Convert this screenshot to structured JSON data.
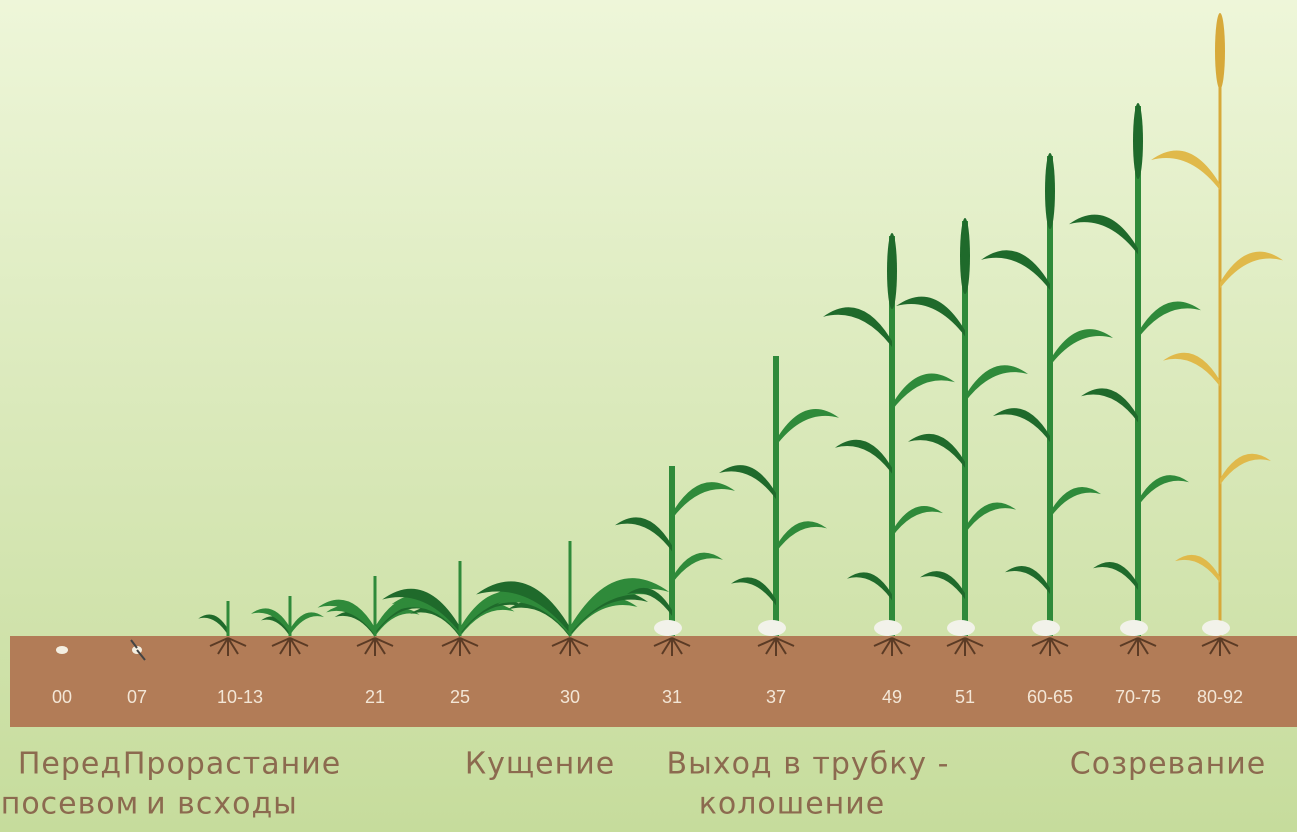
{
  "stages": [
    "00",
    "07",
    "10-13",
    "21",
    "25",
    "30",
    "31",
    "37",
    "49",
    "51",
    "60-65",
    "70-75",
    "80-92"
  ],
  "phases": [
    {
      "lines": [
        "Перед",
        "посевом"
      ]
    },
    {
      "lines": [
        "Прорастание",
        "и всходы"
      ]
    },
    {
      "lines": [
        "Кущение"
      ]
    },
    {
      "lines": [
        "Выход в трубку -",
        "колошение"
      ]
    },
    {
      "lines": [
        "Созревание"
      ]
    }
  ]
}
